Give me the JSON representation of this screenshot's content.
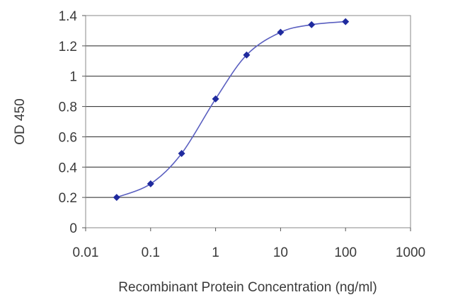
{
  "chart_data": {
    "type": "line",
    "title": "",
    "xlabel": "Recombinant Protein Concentration (ng/ml)",
    "ylabel": "OD 450",
    "x_scale": "log",
    "xlim": [
      0.01,
      1000
    ],
    "ylim": [
      0,
      1.4
    ],
    "x_ticks": [
      "0.01",
      "0.1",
      "1",
      "10",
      "100",
      "1000"
    ],
    "y_ticks": [
      "0",
      "0.2",
      "0.4",
      "0.6",
      "0.8",
      "1",
      "1.2",
      "1.4"
    ],
    "grid": "horizontal",
    "legend": "none",
    "series": [
      {
        "color": "#1f2a9e",
        "marker": "diamond",
        "x": [
          0.03,
          0.1,
          0.3,
          1,
          3,
          10,
          30,
          100
        ],
        "y": [
          0.2,
          0.29,
          0.49,
          0.85,
          1.14,
          1.29,
          1.34,
          1.36
        ]
      }
    ]
  }
}
